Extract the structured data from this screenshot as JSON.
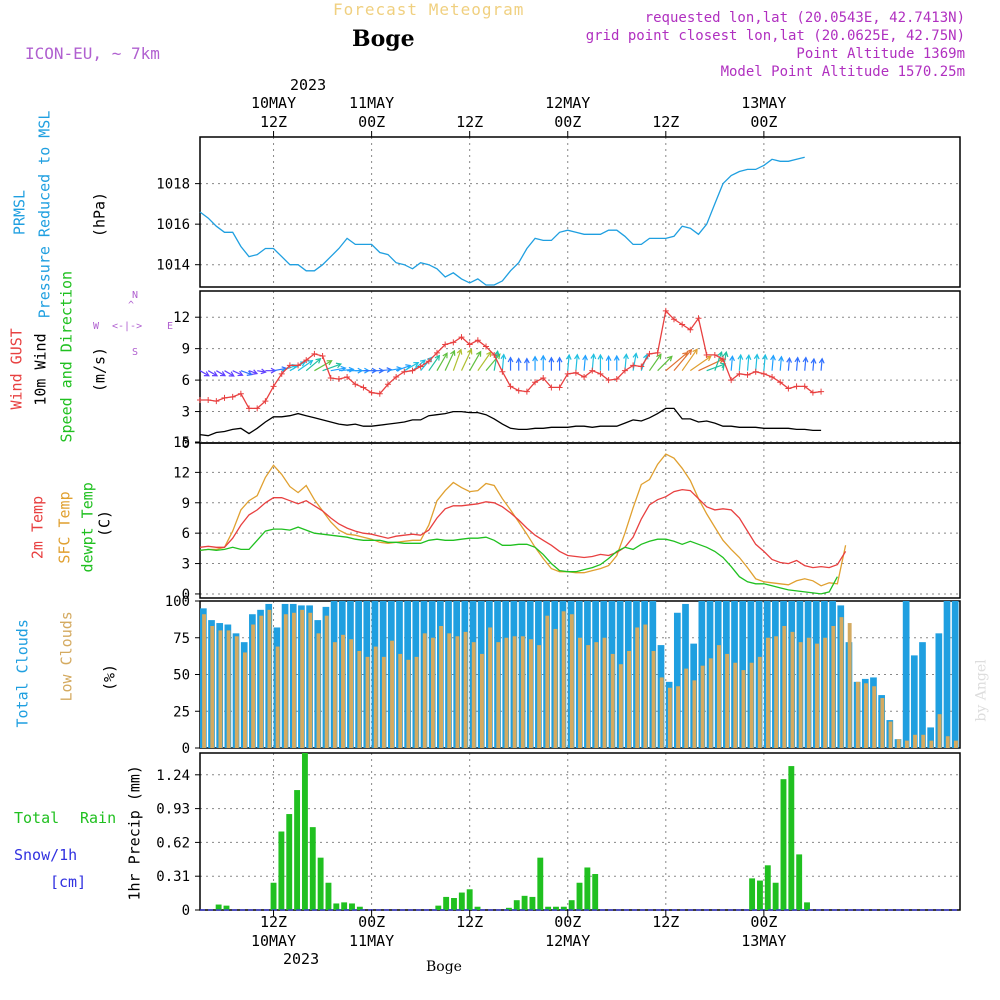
{
  "header": {
    "super_title": "Forecast Meteogram",
    "location": "Boge",
    "model": "ICON-EU, ~ 7km",
    "requested": "requested lon,lat (20.0543E, 42.7413N)",
    "grid_point": "grid point closest lon,lat (20.0625E, 42.75N)",
    "point_altitude": "Point Altitude 1369m",
    "model_altitude": "Model Point Altitude 1570.25m",
    "footer_location": "Boge",
    "watermark": "by Angel"
  },
  "time_axis": {
    "year": "2023",
    "top_ticks": [
      {
        "day": "10MAY",
        "hour": "12Z"
      },
      {
        "day": "11MAY",
        "hour": "00Z"
      },
      {
        "day": "",
        "hour": "12Z"
      },
      {
        "day": "12MAY",
        "hour": "00Z"
      },
      {
        "day": "",
        "hour": "12Z"
      },
      {
        "day": "13MAY",
        "hour": "00Z"
      }
    ],
    "bottom_ticks": [
      {
        "hour": "12Z",
        "day": "10MAY"
      },
      {
        "hour": "00Z",
        "day": "11MAY"
      },
      {
        "hour": "12Z",
        "day": ""
      },
      {
        "hour": "00Z",
        "day": "12MAY"
      },
      {
        "hour": "12Z",
        "day": ""
      },
      {
        "hour": "00Z",
        "day": "13MAY"
      }
    ]
  },
  "labels": {
    "prmsl": "PRMSL",
    "pressure": "Pressure Reduced to MSL",
    "hpa": "(hPa)",
    "gust": "Wind GUST",
    "wind10": "10m Wind",
    "speed_dir": "Speed and Direction",
    "ms": "(m/s)",
    "compass_n": "N",
    "compass_s": "S",
    "compass_w": "W",
    "compass_e": "E",
    "temp2m": "2m Temp",
    "sfc_temp": "SFC Temp",
    "dewpt": "dewpt Temp",
    "celsius": "(C)",
    "total_clouds": "Total Clouds",
    "low_clouds": "Low Clouds",
    "percent": "(%)",
    "total": "Total",
    "rain": "Rain",
    "snow": "Snow/1h",
    "cm": "[cm]",
    "precip": "1hr Precip (mm)"
  },
  "colors": {
    "pressure": "#1f9fe0",
    "gust": "#e84040",
    "wind": "#000000",
    "t2m": "#e84040",
    "tsfc": "#e0a030",
    "dewpt": "#20c020",
    "total_clouds": "#1f9fe0",
    "low_clouds": "#d4aa60",
    "rain": "#20c020",
    "snow": "#3030e0",
    "model": "#b060d0",
    "info": "#b030c0"
  },
  "chart_data": [
    {
      "type": "line",
      "title": "PRMSL Pressure Reduced to MSL",
      "ylabel": "(hPa)",
      "x_unit": "hours since 10MAY 00Z",
      "x_start": 3,
      "x_step": 1,
      "ylim": [
        1012.9,
        1020.3
      ],
      "yticks": [
        1014,
        1016,
        1018
      ],
      "series": [
        {
          "name": "PRMSL",
          "values": [
            1016.6,
            1016.3,
            1015.9,
            1015.6,
            1015.6,
            1014.9,
            1014.4,
            1014.5,
            1014.8,
            1014.8,
            1014.4,
            1014.0,
            1014.0,
            1013.7,
            1013.7,
            1014.0,
            1014.4,
            1014.8,
            1015.3,
            1015.0,
            1015.0,
            1015.0,
            1014.6,
            1014.5,
            1014.1,
            1014.0,
            1013.8,
            1014.1,
            1014.0,
            1013.8,
            1013.4,
            1013.6,
            1013.3,
            1013.1,
            1013.3,
            1013.0,
            1013.0,
            1013.2,
            1013.7,
            1014.1,
            1014.8,
            1015.3,
            1015.2,
            1015.2,
            1015.6,
            1015.7,
            1015.6,
            1015.5,
            1015.5,
            1015.5,
            1015.7,
            1015.7,
            1015.4,
            1015.0,
            1015.0,
            1015.3,
            1015.3,
            1015.3,
            1015.4,
            1015.9,
            1015.8,
            1015.5,
            1016.0,
            1017.0,
            1018.0,
            1018.4,
            1018.6,
            1018.7,
            1018.7,
            1018.9,
            1019.2,
            1019.1,
            1019.1,
            1019.2,
            1019.3
          ]
        }
      ]
    },
    {
      "type": "line",
      "title": "Wind GUST / 10m Wind Speed and Direction",
      "ylabel": "(m/s)",
      "x_unit": "hours since 10MAY 00Z",
      "x_start": 3,
      "x_step": 1,
      "ylim": [
        0,
        14.5
      ],
      "yticks": [
        0,
        3,
        6,
        9,
        12
      ],
      "series": [
        {
          "name": "Wind GUST",
          "values": [
            4.1,
            4.1,
            4.0,
            4.3,
            4.4,
            4.7,
            3.3,
            3.3,
            4.0,
            5.4,
            6.6,
            7.4,
            7.4,
            7.9,
            8.5,
            8.3,
            6.2,
            6.1,
            6.3,
            5.6,
            5.3,
            4.8,
            4.7,
            5.6,
            6.3,
            6.8,
            6.9,
            7.3,
            7.8,
            8.6,
            9.4,
            9.6,
            10.1,
            9.4,
            9.8,
            9.2,
            8.4,
            6.8,
            5.4,
            5.0,
            4.9,
            5.8,
            6.2,
            5.3,
            5.3,
            6.6,
            6.7,
            6.3,
            6.9,
            6.6,
            6.0,
            6.1,
            6.9,
            7.4,
            7.3,
            8.5,
            8.6,
            12.6,
            11.8,
            11.3,
            10.8,
            11.9,
            8.4,
            8.4,
            8.0,
            6.0,
            6.6,
            6.5,
            6.8,
            6.6,
            6.3,
            5.8,
            5.2,
            5.4,
            5.4,
            4.8,
            4.9
          ]
        },
        {
          "name": "10m Wind",
          "values": [
            0.8,
            0.7,
            1.0,
            1.1,
            1.3,
            1.4,
            0.9,
            1.4,
            2.0,
            2.5,
            2.5,
            2.6,
            2.8,
            2.6,
            2.4,
            2.2,
            2.0,
            1.8,
            1.7,
            1.8,
            1.6,
            1.6,
            1.7,
            1.8,
            1.9,
            2.0,
            2.2,
            2.2,
            2.6,
            2.7,
            2.8,
            3.0,
            3.0,
            2.9,
            2.9,
            2.7,
            2.3,
            1.8,
            1.4,
            1.3,
            1.3,
            1.4,
            1.4,
            1.5,
            1.5,
            1.5,
            1.6,
            1.6,
            1.5,
            1.6,
            1.6,
            1.6,
            1.9,
            2.2,
            2.1,
            2.4,
            2.8,
            3.3,
            3.3,
            2.3,
            2.3,
            2.0,
            2.1,
            1.9,
            1.6,
            1.6,
            1.5,
            1.5,
            1.5,
            1.4,
            1.4,
            1.4,
            1.4,
            1.3,
            1.3,
            1.2,
            1.2
          ]
        },
        {
          "name": "Direction (deg from)",
          "values": [
            300,
            300,
            300,
            300,
            295,
            290,
            290,
            280,
            270,
            260,
            250,
            240,
            235,
            230,
            240,
            250,
            260,
            265,
            270,
            270,
            270,
            270,
            265,
            260,
            250,
            240,
            230,
            220,
            215,
            210,
            205,
            200,
            205,
            210,
            215,
            220,
            190,
            185,
            180,
            180,
            180,
            180,
            180,
            180,
            180,
            185,
            185,
            185,
            185,
            180,
            180,
            180,
            185,
            190,
            200,
            215,
            225,
            230,
            220,
            215,
            235,
            245,
            250,
            200,
            190,
            185,
            185,
            185,
            185,
            185,
            185,
            185,
            185,
            185,
            185,
            185,
            185
          ]
        }
      ]
    },
    {
      "type": "line",
      "title": "2m Temp / SFC Temp / dewpt Temp",
      "ylabel": "(C)",
      "x_unit": "hours since 10MAY 00Z",
      "x_start": 3,
      "x_step": 1,
      "ylim": [
        -0.4,
        14.9
      ],
      "yticks": [
        0,
        3,
        6,
        9,
        12,
        15
      ],
      "series": [
        {
          "name": "2m Temp",
          "values": [
            4.6,
            4.7,
            4.6,
            4.6,
            5.5,
            6.8,
            7.8,
            8.3,
            9.0,
            9.5,
            9.5,
            9.2,
            8.9,
            9.2,
            8.7,
            8.2,
            7.5,
            6.9,
            6.5,
            6.2,
            6.0,
            5.9,
            5.7,
            5.5,
            5.7,
            5.8,
            5.9,
            5.8,
            6.3,
            7.5,
            8.4,
            8.7,
            8.7,
            8.8,
            8.9,
            9.1,
            9.0,
            8.6,
            8.0,
            7.3,
            6.5,
            5.8,
            5.3,
            4.8,
            4.2,
            3.8,
            3.7,
            3.6,
            3.7,
            3.9,
            3.8,
            4.1,
            4.6,
            5.6,
            7.4,
            8.8,
            9.3,
            9.6,
            10.1,
            10.3,
            10.2,
            9.4,
            8.6,
            8.3,
            8.4,
            8.3,
            7.5,
            6.2,
            4.9,
            4.2,
            3.4,
            3.1,
            3.0,
            3.3,
            2.8,
            2.6,
            2.7,
            2.6,
            2.9,
            4.2
          ]
        },
        {
          "name": "SFC Temp",
          "values": [
            4.3,
            4.4,
            4.4,
            4.6,
            6.2,
            8.3,
            9.2,
            9.7,
            11.5,
            12.7,
            11.8,
            10.6,
            10.0,
            10.7,
            9.3,
            8.2,
            7.1,
            6.3,
            5.9,
            5.8,
            5.6,
            5.4,
            5.1,
            5.0,
            5.1,
            5.2,
            5.3,
            5.3,
            6.8,
            9.2,
            10.2,
            11.0,
            10.5,
            10.1,
            10.2,
            10.9,
            10.7,
            9.4,
            8.3,
            7.1,
            5.9,
            4.6,
            3.5,
            2.5,
            2.2,
            2.2,
            2.1,
            2.1,
            2.3,
            2.5,
            2.8,
            3.8,
            6.0,
            8.5,
            10.8,
            11.3,
            12.8,
            13.8,
            13.4,
            12.4,
            11.2,
            9.4,
            7.9,
            6.6,
            5.3,
            4.4,
            3.6,
            2.6,
            1.5,
            1.2,
            1.1,
            1.0,
            0.9,
            1.3,
            1.5,
            1.3,
            0.8,
            1.1,
            1.0,
            4.8
          ]
        },
        {
          "name": "dewpt Temp",
          "values": [
            4.3,
            4.4,
            4.3,
            4.4,
            4.6,
            4.4,
            4.4,
            5.3,
            6.2,
            6.4,
            6.4,
            6.3,
            6.6,
            6.3,
            6.0,
            5.9,
            5.8,
            5.7,
            5.6,
            5.4,
            5.3,
            5.3,
            5.3,
            5.1,
            5.1,
            5.0,
            5.0,
            5.0,
            5.3,
            5.4,
            5.3,
            5.3,
            5.4,
            5.5,
            5.5,
            5.6,
            5.3,
            4.8,
            4.8,
            4.9,
            4.9,
            4.6,
            3.9,
            3.0,
            2.3,
            2.2,
            2.2,
            2.4,
            2.6,
            2.9,
            3.5,
            4.2,
            4.6,
            4.4,
            4.9,
            5.2,
            5.4,
            5.4,
            5.2,
            4.9,
            5.2,
            4.9,
            4.6,
            4.2,
            3.6,
            2.7,
            1.7,
            1.2,
            1.0,
            1.0,
            0.8,
            0.6,
            0.4,
            0.3,
            0.2,
            0.1,
            0.0,
            0.2,
            1.7
          ]
        }
      ]
    },
    {
      "type": "bar",
      "title": "Total Clouds / Low Clouds",
      "ylabel": "(%)",
      "x_unit": "hours since 10MAY 00Z",
      "x_start": 3,
      "x_step": 1,
      "ylim": [
        0,
        100
      ],
      "yticks": [
        0,
        25,
        50,
        75,
        100
      ],
      "series": [
        {
          "name": "Total Clouds",
          "values": [
            95,
            87,
            85,
            84,
            78,
            72,
            91,
            94,
            98,
            82,
            98,
            98,
            97,
            97,
            87,
            96,
            100,
            100,
            100,
            100,
            100,
            100,
            100,
            100,
            100,
            100,
            100,
            100,
            100,
            100,
            100,
            100,
            100,
            100,
            100,
            100,
            100,
            100,
            100,
            100,
            100,
            100,
            100,
            100,
            100,
            100,
            100,
            100,
            100,
            100,
            100,
            100,
            100,
            100,
            100,
            100,
            70,
            45,
            92,
            98,
            71,
            100,
            100,
            100,
            100,
            100,
            100,
            100,
            100,
            100,
            100,
            100,
            100,
            100,
            100,
            100,
            100,
            100,
            97,
            72,
            45,
            47,
            48,
            36,
            19,
            6,
            100,
            63,
            72,
            14,
            78,
            100,
            100,
            100
          ]
        },
        {
          "name": "Low Clouds",
          "values": [
            91,
            83,
            80,
            80,
            76,
            65,
            84,
            90,
            94,
            69,
            91,
            92,
            94,
            92,
            78,
            90,
            72,
            77,
            74,
            66,
            62,
            69,
            62,
            73,
            64,
            60,
            62,
            78,
            75,
            83,
            78,
            76,
            79,
            72,
            64,
            82,
            72,
            75,
            76,
            76,
            74,
            70,
            90,
            81,
            93,
            91,
            75,
            70,
            72,
            75,
            64,
            57,
            66,
            82,
            84,
            66,
            48,
            41,
            42,
            54,
            46,
            56,
            61,
            70,
            64,
            58,
            53,
            58,
            62,
            75,
            76,
            83,
            79,
            72,
            75,
            71,
            75,
            83,
            89,
            85,
            45,
            44,
            42,
            34,
            18,
            6,
            5,
            9,
            9,
            5,
            23,
            8,
            5,
            4
          ]
        }
      ]
    },
    {
      "type": "bar",
      "title": "1hr Precip (mm)",
      "ylabel": "1hr Precip (mm)",
      "x_unit": "hours since 10MAY 00Z",
      "x_start": 3,
      "x_step": 1,
      "ylim": [
        0,
        1.44
      ],
      "yticks": [
        0,
        0.31,
        0.62,
        0.93,
        1.24
      ],
      "series": [
        {
          "name": "Total Rain",
          "values": [
            0,
            0,
            0.05,
            0.04,
            0,
            0,
            0,
            0,
            0,
            0.25,
            0.72,
            0.88,
            1.1,
            1.44,
            0.76,
            0.48,
            0.25,
            0.06,
            0.07,
            0.06,
            0.03,
            0,
            0,
            0,
            0,
            0,
            0,
            0,
            0,
            0,
            0.04,
            0.12,
            0.11,
            0.16,
            0.19,
            0.03,
            0,
            0,
            0,
            0.02,
            0.09,
            0.13,
            0.12,
            0.48,
            0.03,
            0.03,
            0.03,
            0.09,
            0.25,
            0.39,
            0.33,
            0,
            0,
            0,
            0,
            0,
            0,
            0,
            0,
            0,
            0,
            0,
            0,
            0,
            0,
            0,
            0,
            0,
            0,
            0,
            0.29,
            0.27,
            0.41,
            0.25,
            1.2,
            1.32,
            0.51,
            0.07,
            0,
            0,
            0,
            0,
            0,
            0,
            0,
            0,
            0,
            0,
            0,
            0,
            0,
            0,
            0,
            0,
            0,
            0,
            0,
            0,
            0,
            0
          ]
        },
        {
          "name": "Snow/1h",
          "values": []
        }
      ]
    }
  ]
}
